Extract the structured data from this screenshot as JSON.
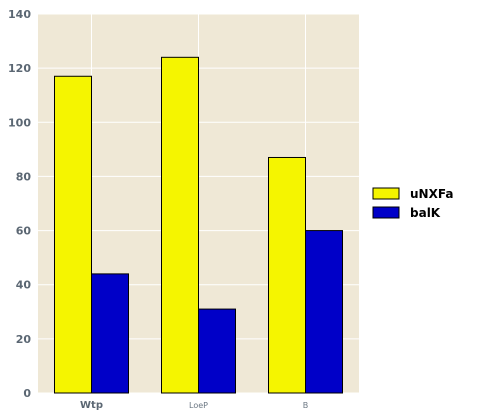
{
  "chart_data": {
    "type": "bar",
    "title": "",
    "xlabel": "",
    "ylabel": "",
    "categories": [
      "Wtp",
      "LoeP",
      "B"
    ],
    "series": [
      {
        "name": "uNXFa",
        "values": [
          117,
          124,
          87
        ],
        "color": "#f5f500"
      },
      {
        "name": "balK",
        "values": [
          44,
          31,
          60
        ],
        "color": "#0000c8"
      }
    ],
    "ylim": [
      0,
      140
    ],
    "yticks": [
      0,
      20,
      40,
      60,
      80,
      100,
      120,
      140
    ],
    "grid": true,
    "legend": "right",
    "colors": {
      "plot_background": "#efe8d6",
      "grid": "#ffffff",
      "tick_text": "#5b6773"
    }
  }
}
